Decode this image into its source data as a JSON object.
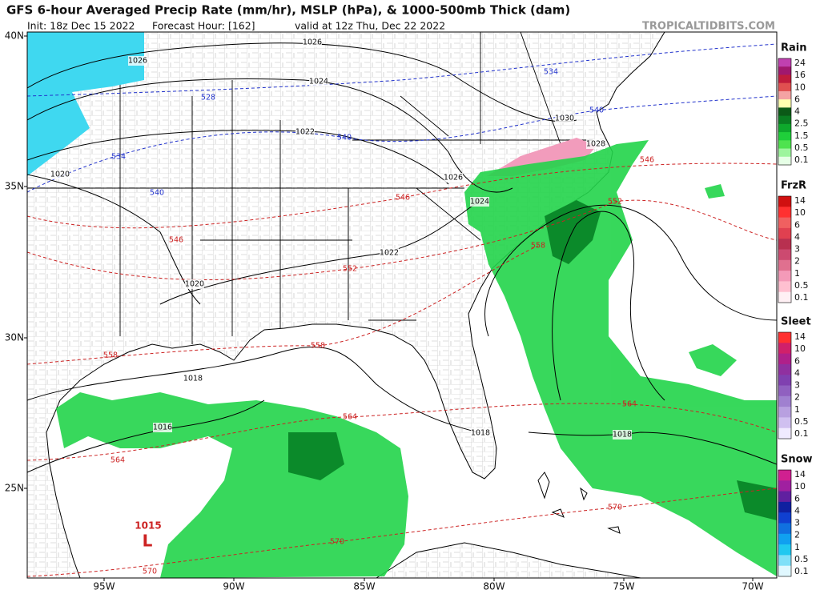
{
  "header": {
    "title": "GFS 6-hour Averaged Precip Rate (mm/hr), MSLP (hPa), & 1000-500mb Thick (dam)",
    "subtitle": [
      "Init: 18z Dec 15 2022",
      "Forecast Hour: [162]",
      "valid at 12z Thu, Dec 22 2022"
    ],
    "site": "TROPICALTIDBITS.COM"
  },
  "map": {
    "lat_labels": [
      "40N",
      "35N",
      "30N",
      "25N"
    ],
    "lon_labels": [
      "95W",
      "90W",
      "85W",
      "80W",
      "75W",
      "70W"
    ],
    "isobar_labels": [
      "1026",
      "1026",
      "1024",
      "1022",
      "1020",
      "1030",
      "1028",
      "1026",
      "1024",
      "1022",
      "1020",
      "1018",
      "1016",
      "1018",
      "1018"
    ],
    "thickness_labels": [
      "534",
      "528",
      "540",
      "540",
      "534",
      "540",
      "546",
      "546",
      "552",
      "546",
      "558",
      "552",
      "558",
      "558",
      "564",
      "564",
      "564",
      "570",
      "570",
      "570"
    ],
    "low": {
      "pressure": "1015",
      "symbol": "L"
    }
  },
  "legend": [
    {
      "title": "Rain",
      "labels": [
        24,
        16,
        10,
        6,
        4,
        2.5,
        1.5,
        0.5,
        0.1
      ]
    },
    {
      "title": "FrzR",
      "labels": [
        14,
        10,
        6,
        4,
        3,
        2,
        1,
        0.5,
        0.1
      ]
    },
    {
      "title": "Sleet",
      "labels": [
        14,
        10,
        6,
        4,
        3,
        2,
        1,
        0.5,
        0.1
      ]
    },
    {
      "title": "Snow",
      "labels": [
        14,
        10,
        6,
        4,
        3,
        2,
        1,
        0.5,
        0.1
      ]
    }
  ]
}
